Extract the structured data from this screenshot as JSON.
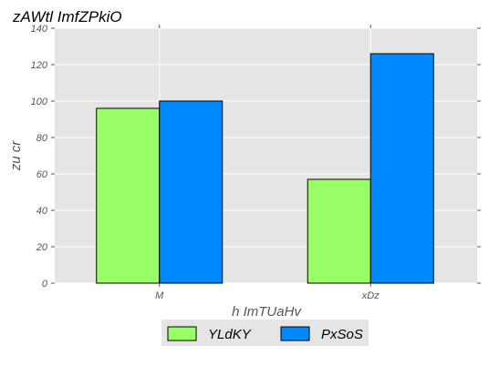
{
  "chart_data": {
    "type": "bar",
    "title": "zAWtl ImfZPkiO",
    "xlabel": "h  ImTUaHv",
    "ylabel": "zu cr",
    "categories": [
      "M",
      "xDz"
    ],
    "series": [
      {
        "name": "YLdKY",
        "values": [
          96,
          57
        ],
        "color": "#99ff66"
      },
      {
        "name": "PxSoS",
        "values": [
          100,
          126
        ],
        "color": "#0088ff"
      }
    ],
    "ylim": [
      0,
      140
    ],
    "yticks": [
      0,
      20,
      40,
      60,
      80,
      100,
      120,
      140
    ],
    "grid": true,
    "legend_position": "bottom-center",
    "colors": {
      "plot_background": "#e5e5e5",
      "grid": "#ffffff",
      "bar_edge": "#000000",
      "legend_background": "#e5e5e5"
    }
  }
}
